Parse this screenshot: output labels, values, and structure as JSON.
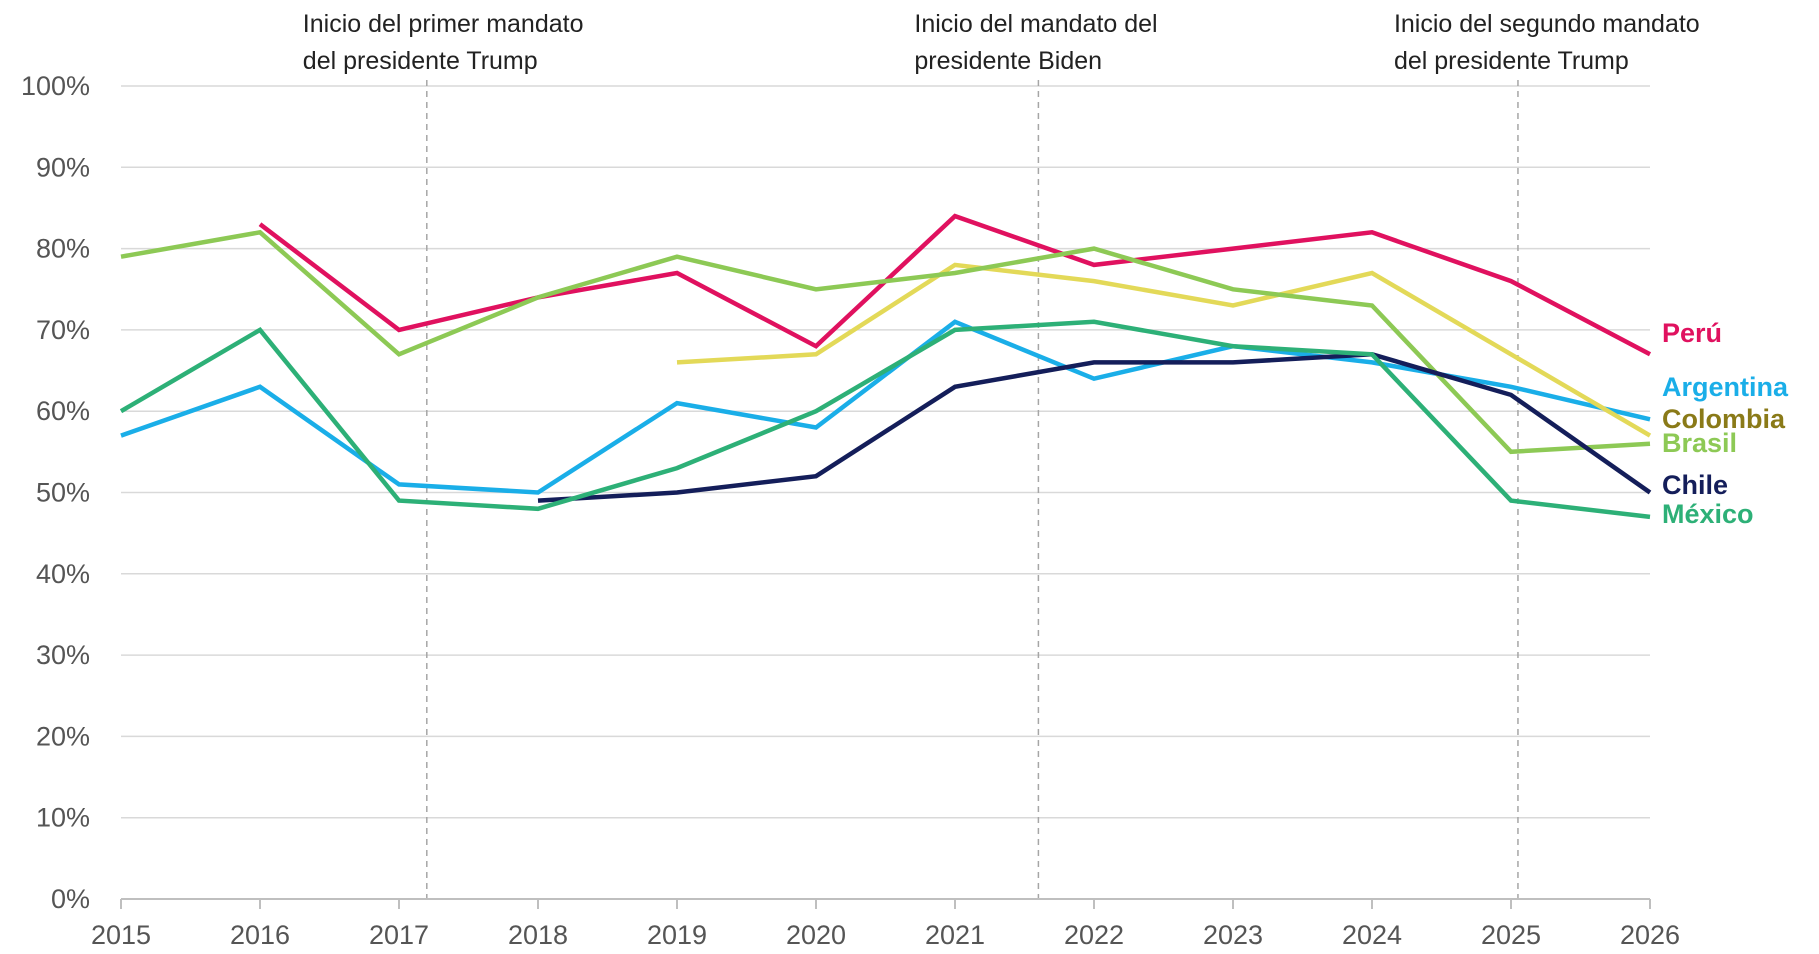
{
  "chart_data": {
    "type": "line",
    "title": "",
    "xlabel": "",
    "ylabel": "",
    "x": [
      "2015",
      "2016",
      "2017",
      "2018",
      "2019",
      "2020",
      "2021",
      "2022",
      "2023",
      "2024",
      "2025",
      "2026"
    ],
    "ylim": [
      0,
      100
    ],
    "y_ticks": [
      0,
      10,
      20,
      30,
      40,
      50,
      60,
      70,
      80,
      90,
      100
    ],
    "y_tick_labels": [
      "0%",
      "10%",
      "20%",
      "30%",
      "40%",
      "50%",
      "60%",
      "70%",
      "80%",
      "90%",
      "100%"
    ],
    "grid": true,
    "legend": "direct labels at right end of lines",
    "annotations": [
      {
        "x": 2017.2,
        "lines": [
          "Inicio del primer mandato",
          "del presidente Trump"
        ]
      },
      {
        "x": 2021.6,
        "lines": [
          "Inicio del mandato del",
          "presidente Biden"
        ]
      },
      {
        "x": 2025.05,
        "lines": [
          "Inicio del segundo mandato",
          "del presidente Trump"
        ]
      }
    ],
    "series": [
      {
        "name": "Perú",
        "color": "#E0115F",
        "label_color": "#E0115F",
        "values": [
          null,
          83,
          70,
          74,
          77,
          68,
          84,
          78,
          80,
          82,
          76,
          67
        ]
      },
      {
        "name": "Argentina",
        "color": "#1AAEE8",
        "label_color": "#1AAEE8",
        "values": [
          57,
          63,
          51,
          50,
          61,
          58,
          71,
          64,
          68,
          66,
          63,
          59
        ]
      },
      {
        "name": "Colombia",
        "color": "#E3D958",
        "label_color": "#8A7A18",
        "values": [
          null,
          null,
          null,
          null,
          66,
          67,
          78,
          76,
          73,
          77,
          67,
          57
        ]
      },
      {
        "name": "Brasil",
        "color": "#8DC955",
        "label_color": "#8DC955",
        "values": [
          79,
          82,
          67,
          74,
          79,
          75,
          77,
          80,
          75,
          73,
          55,
          56
        ]
      },
      {
        "name": "Chile",
        "color": "#141E5A",
        "label_color": "#141E5A",
        "values": [
          null,
          null,
          null,
          49,
          50,
          52,
          63,
          66,
          66,
          67,
          62,
          50
        ]
      },
      {
        "name": "México",
        "color": "#2DB077",
        "label_color": "#2DB077",
        "values": [
          60,
          70,
          49,
          48,
          53,
          60,
          70,
          71,
          68,
          67,
          49,
          47
        ]
      }
    ]
  }
}
